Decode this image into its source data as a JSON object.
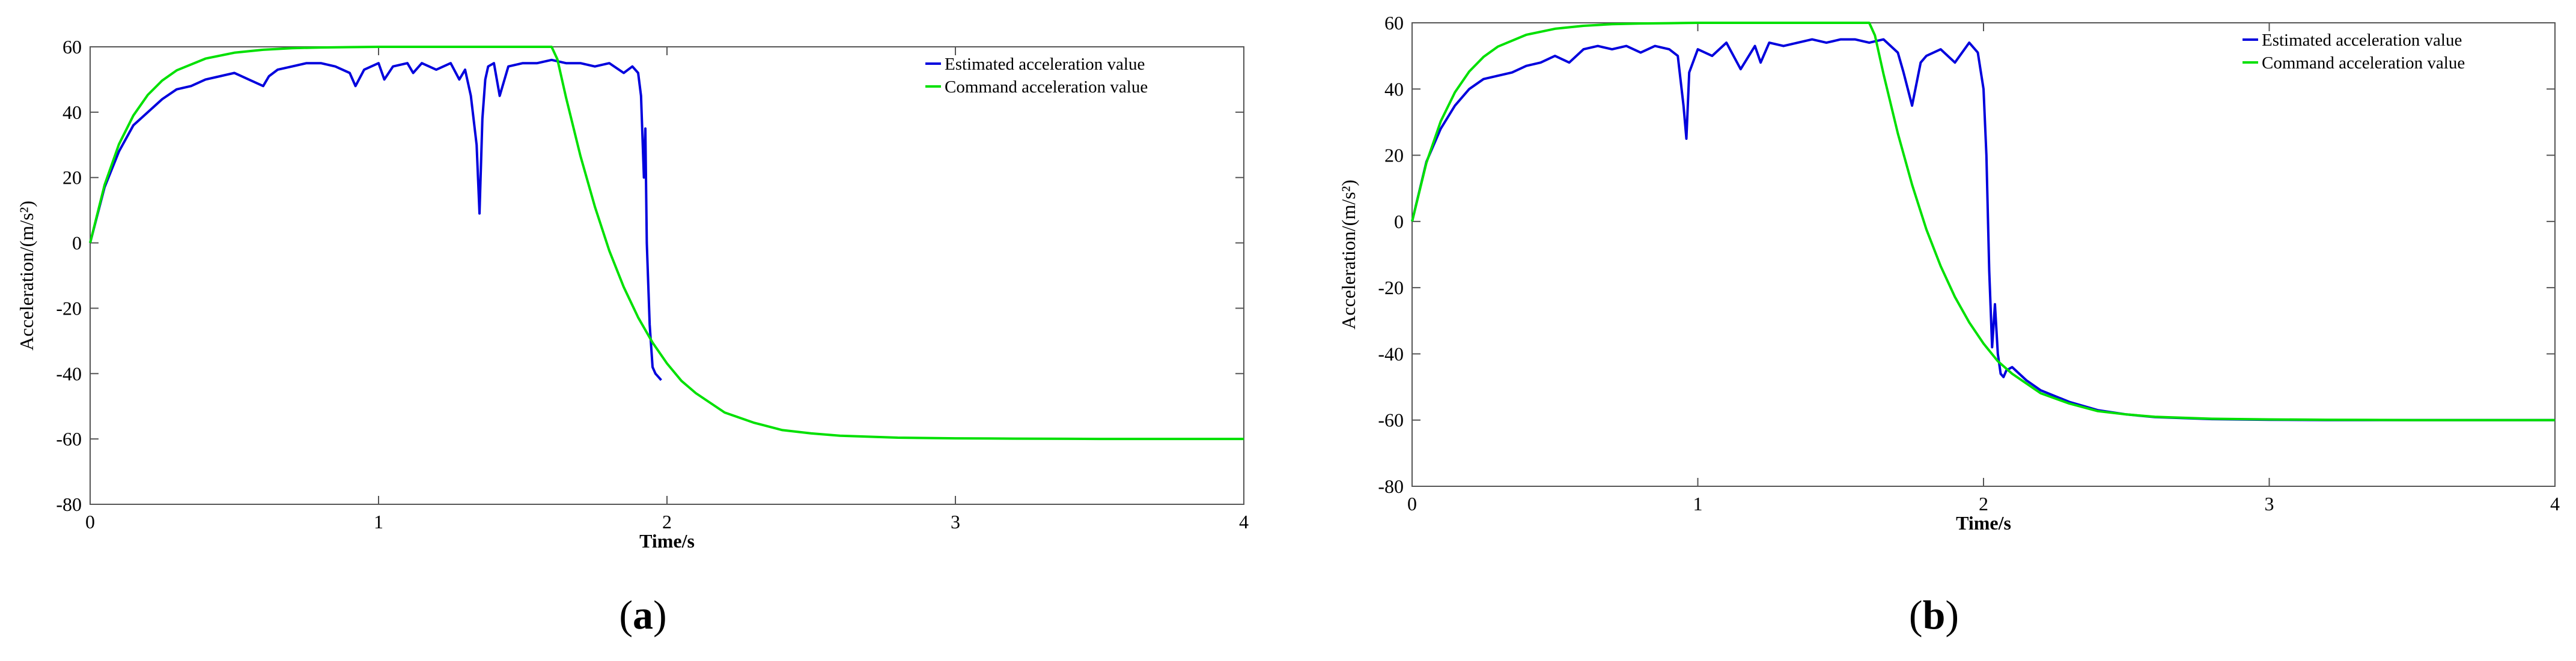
{
  "chart_data": [
    {
      "type": "line",
      "caption": "a",
      "xlabel": "Time/s",
      "ylabel": "Acceleration/(m/s²)",
      "xlim": [
        0,
        4
      ],
      "ylim": [
        -80,
        60
      ],
      "xticks": [
        0,
        1,
        2,
        3,
        4
      ],
      "yticks": [
        -80,
        -60,
        -40,
        -20,
        0,
        20,
        40,
        60
      ],
      "grid": false,
      "legend_position": "top-right",
      "series": [
        {
          "name": "Estimated acceleration value",
          "color": "#0000dd",
          "x": [
            0,
            0.05,
            0.1,
            0.15,
            0.2,
            0.25,
            0.3,
            0.35,
            0.4,
            0.45,
            0.5,
            0.55,
            0.6,
            0.62,
            0.65,
            0.7,
            0.75,
            0.8,
            0.85,
            0.9,
            0.92,
            0.95,
            1.0,
            1.02,
            1.05,
            1.1,
            1.12,
            1.15,
            1.2,
            1.25,
            1.28,
            1.3,
            1.32,
            1.34,
            1.35,
            1.36,
            1.37,
            1.38,
            1.4,
            1.42,
            1.45,
            1.5,
            1.55,
            1.6,
            1.65,
            1.7,
            1.75,
            1.8,
            1.85,
            1.88,
            1.9,
            1.91,
            1.92,
            1.925,
            1.93,
            1.94,
            1.95,
            1.96,
            1.97,
            1.98
          ],
          "y": [
            0,
            17,
            28,
            36,
            40,
            44,
            47,
            48,
            50,
            51,
            52,
            50,
            48,
            51,
            53,
            54,
            55,
            55,
            54,
            52,
            48,
            53,
            55,
            50,
            54,
            55,
            52,
            55,
            53,
            55,
            50,
            53,
            45,
            30,
            9,
            38,
            50,
            54,
            55,
            45,
            54,
            55,
            55,
            56,
            55,
            55,
            54,
            55,
            52,
            54,
            52,
            45,
            20,
            35,
            0,
            -25,
            -38,
            -40,
            -41,
            -42
          ]
        },
        {
          "name": "Command acceleration value",
          "color": "#00e000",
          "x": [
            0,
            0.05,
            0.1,
            0.15,
            0.2,
            0.25,
            0.3,
            0.4,
            0.5,
            0.6,
            0.7,
            0.8,
            0.9,
            1.0,
            1.2,
            1.4,
            1.6,
            1.62,
            1.65,
            1.7,
            1.75,
            1.8,
            1.85,
            1.9,
            1.95,
            2.0,
            2.05,
            2.1,
            2.2,
            2.3,
            2.4,
            2.5,
            2.6,
            2.8,
            3.0,
            3.2,
            3.5,
            4.0
          ],
          "y": [
            0,
            17.7,
            30.2,
            39.0,
            45.3,
            49.7,
            52.8,
            56.4,
            58.2,
            59.1,
            59.6,
            59.8,
            59.9,
            60,
            60,
            60,
            60,
            56.2,
            44.5,
            26.6,
            11.1,
            -2.4,
            -13.5,
            -22.8,
            -30.5,
            -36.9,
            -42.2,
            -46.0,
            -51.9,
            -55.0,
            -57.3,
            -58.3,
            -59.0,
            -59.6,
            -59.8,
            -59.9,
            -60,
            -60
          ]
        }
      ]
    },
    {
      "type": "line",
      "caption": "b",
      "xlabel": "Time/s",
      "ylabel": "Acceleration/(m/s²)",
      "xlim": [
        0,
        4
      ],
      "ylim": [
        -80,
        60
      ],
      "xticks": [
        0,
        1,
        2,
        3,
        4
      ],
      "yticks": [
        -80,
        -60,
        -40,
        -20,
        0,
        20,
        40,
        60
      ],
      "grid": false,
      "legend_position": "top-right",
      "series": [
        {
          "name": "Estimated acceleration value",
          "color": "#0000dd",
          "x": [
            0,
            0.05,
            0.1,
            0.15,
            0.2,
            0.25,
            0.3,
            0.35,
            0.4,
            0.45,
            0.5,
            0.55,
            0.6,
            0.65,
            0.7,
            0.75,
            0.8,
            0.85,
            0.9,
            0.93,
            0.95,
            0.96,
            0.97,
            1.0,
            1.05,
            1.1,
            1.15,
            1.2,
            1.22,
            1.25,
            1.3,
            1.35,
            1.4,
            1.45,
            1.5,
            1.55,
            1.6,
            1.65,
            1.7,
            1.72,
            1.75,
            1.78,
            1.8,
            1.85,
            1.9,
            1.95,
            1.98,
            2.0,
            2.01,
            2.02,
            2.03,
            2.04,
            2.05,
            2.06,
            2.07,
            2.08,
            2.1,
            2.15,
            2.2,
            2.3,
            2.4,
            2.5,
            2.6,
            2.8,
            3.0,
            3.2,
            3.5,
            4.0
          ],
          "y": [
            0,
            18,
            28,
            35,
            40,
            43,
            44,
            45,
            47,
            48,
            50,
            48,
            52,
            53,
            52,
            53,
            51,
            53,
            52,
            50,
            35,
            25,
            45,
            52,
            50,
            54,
            46,
            53,
            48,
            54,
            53,
            54,
            55,
            54,
            55,
            55,
            54,
            55,
            51,
            45,
            35,
            48,
            50,
            52,
            48,
            54,
            51,
            40,
            20,
            -15,
            -38,
            -25,
            -40,
            -46,
            -47,
            -45,
            -44,
            -48,
            -51,
            -54.5,
            -57,
            -58.3,
            -59.1,
            -59.7,
            -59.9,
            -60,
            -60,
            -60
          ]
        },
        {
          "name": "Command acceleration value",
          "color": "#00e000",
          "x": [
            0,
            0.05,
            0.1,
            0.15,
            0.2,
            0.25,
            0.3,
            0.4,
            0.5,
            0.6,
            0.7,
            0.8,
            0.9,
            1.0,
            1.2,
            1.4,
            1.6,
            1.62,
            1.65,
            1.7,
            1.75,
            1.8,
            1.85,
            1.9,
            1.95,
            2.0,
            2.05,
            2.1,
            2.2,
            2.3,
            2.4,
            2.5,
            2.6,
            2.8,
            3.0,
            3.2,
            3.5,
            4.0
          ],
          "y": [
            0,
            17.7,
            30.2,
            39.0,
            45.3,
            49.7,
            52.8,
            56.4,
            58.2,
            59.1,
            59.6,
            59.8,
            59.9,
            60,
            60,
            60,
            60,
            56.2,
            44.5,
            26.6,
            11.1,
            -2.4,
            -13.5,
            -22.8,
            -30.5,
            -36.9,
            -42.2,
            -46.0,
            -51.9,
            -55.0,
            -57.3,
            -58.3,
            -59.0,
            -59.6,
            -59.8,
            -59.9,
            -60,
            -60
          ]
        }
      ]
    }
  ]
}
